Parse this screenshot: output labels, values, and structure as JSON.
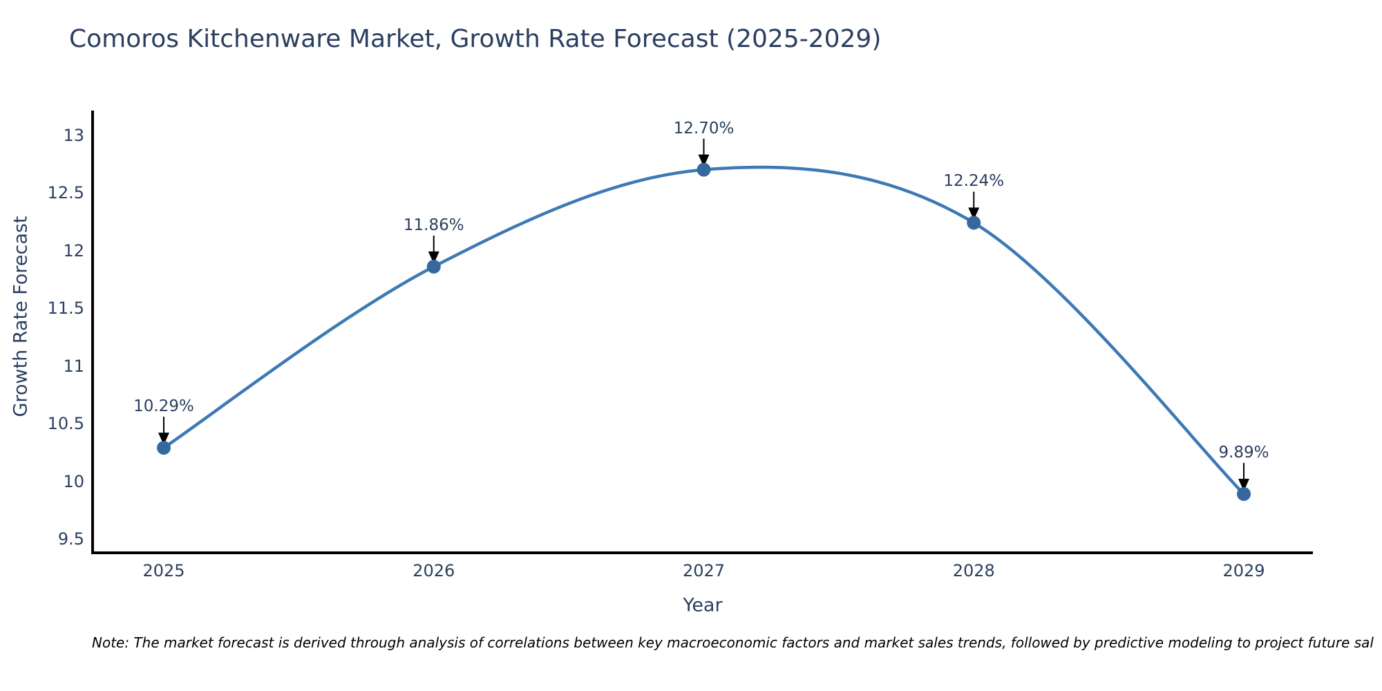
{
  "title": "Comoros Kitchenware Market, Growth Rate Forecast (2025-2029)",
  "note": "Note: The market forecast is derived through analysis of correlations between key macroeconomic factors and market sales trends, followed by predictive modeling to project future sal",
  "chart_data": {
    "type": "line",
    "title": "Comoros Kitchenware Market, Growth Rate Forecast (2025-2029)",
    "xlabel": "Year",
    "ylabel": "Growth Rate Forecast",
    "categories": [
      "2025",
      "2026",
      "2027",
      "2028",
      "2029"
    ],
    "series": [
      {
        "name": "Growth Rate Forecast",
        "values": [
          10.29,
          11.86,
          12.7,
          12.24,
          9.89
        ],
        "point_labels": [
          "10.29%",
          "11.86%",
          "12.70%",
          "12.24%",
          "9.89%"
        ]
      }
    ],
    "line_shape": "spline",
    "markers": true,
    "annotations_arrows": true,
    "y_tick_labels": [
      "9.5",
      "10",
      "10.5",
      "11",
      "11.5",
      "12",
      "12.5",
      "13"
    ],
    "y_tick_values": [
      9.5,
      10,
      10.5,
      11,
      11.5,
      12,
      12.5,
      13
    ],
    "ylim": [
      9.38,
      13.33
    ],
    "grid": false,
    "legend_visible": false,
    "colors": {
      "line": "#3e79b4",
      "marker": "#35699e",
      "axis_line": "#000000",
      "text": "#2a3f5f",
      "annotation_arrow": "#000000",
      "note_text": "#000000",
      "background": "#ffffff"
    }
  }
}
